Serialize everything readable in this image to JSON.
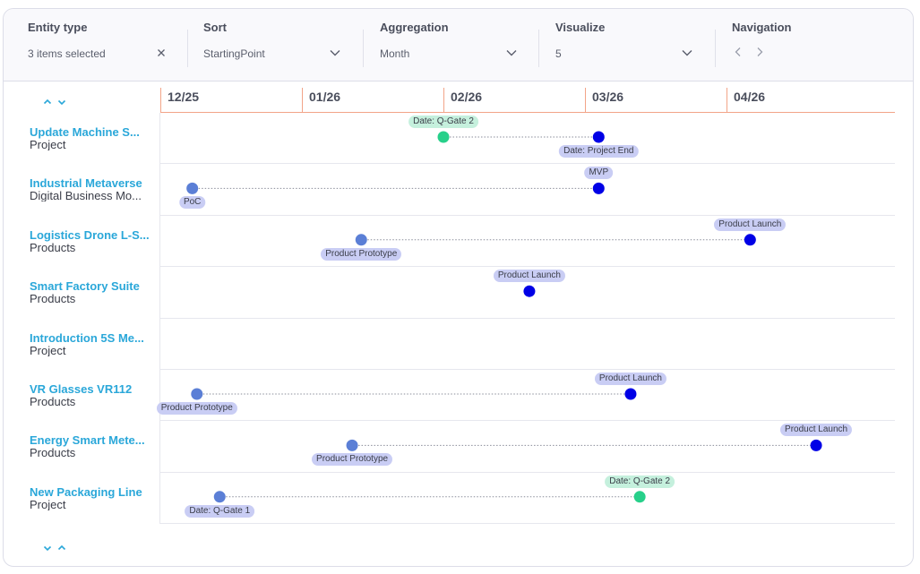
{
  "filters": [
    {
      "title": "Entity type",
      "value": "3 items selected",
      "icon": "close-icon"
    },
    {
      "title": "Sort",
      "value": "StartingPoint",
      "icon": "chevron-down-icon"
    },
    {
      "title": "Aggregation",
      "value": "Month",
      "icon": "chevron-down-icon"
    },
    {
      "title": "Visualize",
      "value": "5",
      "icon": "chevron-down-icon"
    },
    {
      "title": "Navigation",
      "value": "",
      "icon": "nav-arrows"
    }
  ],
  "colors": {
    "accent_blue": "#2aa7d9",
    "milestone_dark": "#0000e6",
    "milestone_light": "#5b7fd6",
    "gate_green": "#27d08a",
    "tag_blue_bg": "#c9cdf4",
    "tag_green_bg": "#c5f0dd",
    "timeline_line": "#f2a488"
  },
  "months": [
    "12/25",
    "01/26",
    "02/26",
    "03/26",
    "04/26"
  ],
  "rows": [
    {
      "name": "Update Machine S...",
      "type": "Project",
      "start": {
        "date": "2026-02-01",
        "label": "Date: Q-Gate 2",
        "kind": "green",
        "label_pos": "above"
      },
      "end": {
        "date": "2026-03-04",
        "label": "Date: Project End",
        "kind": "dark",
        "label_pos": "below"
      }
    },
    {
      "name": "Industrial Metaverse",
      "type": "Digital Business Mo...",
      "start": {
        "date": "2025-12-08",
        "label": "PoC",
        "kind": "light",
        "label_pos": "below"
      },
      "end": {
        "date": "2026-03-04",
        "label": "MVP",
        "kind": "dark",
        "label_pos": "above"
      }
    },
    {
      "name": "Logistics Drone L-S...",
      "type": "Products",
      "start": {
        "date": "2026-01-14",
        "label": "Product Prototype",
        "kind": "light",
        "label_pos": "below"
      },
      "end": {
        "date": "2026-04-06",
        "label": "Product Launch",
        "kind": "dark",
        "label_pos": "above"
      }
    },
    {
      "name": "Smart Factory Suite",
      "type": "Products",
      "start": null,
      "end": {
        "date": "2026-02-18",
        "label": "Product Launch",
        "kind": "dark",
        "label_pos": "above"
      }
    },
    {
      "name": "Introduction 5S Me...",
      "type": "Project",
      "start": null,
      "end": null
    },
    {
      "name": "VR Glasses VR112",
      "type": "Products",
      "start": {
        "date": "2025-12-09",
        "label": "Product Prototype",
        "kind": "light",
        "label_pos": "below"
      },
      "end": {
        "date": "2026-03-11",
        "label": "Product Launch",
        "kind": "dark",
        "label_pos": "above"
      }
    },
    {
      "name": "Energy Smart Mete...",
      "type": "Products",
      "start": {
        "date": "2026-01-12",
        "label": "Product Prototype",
        "kind": "light",
        "label_pos": "below"
      },
      "end": {
        "date": "2026-04-20",
        "label": "Product Launch",
        "kind": "dark",
        "label_pos": "above"
      }
    },
    {
      "name": "New Packaging Line",
      "type": "Project",
      "start": {
        "date": "2025-12-14",
        "label": "Date: Q-Gate 1",
        "kind": "light",
        "label_pos": "below"
      },
      "end": {
        "date": "2026-03-13",
        "label": "Date: Q-Gate 2",
        "kind": "green",
        "label_pos": "above"
      }
    }
  ]
}
